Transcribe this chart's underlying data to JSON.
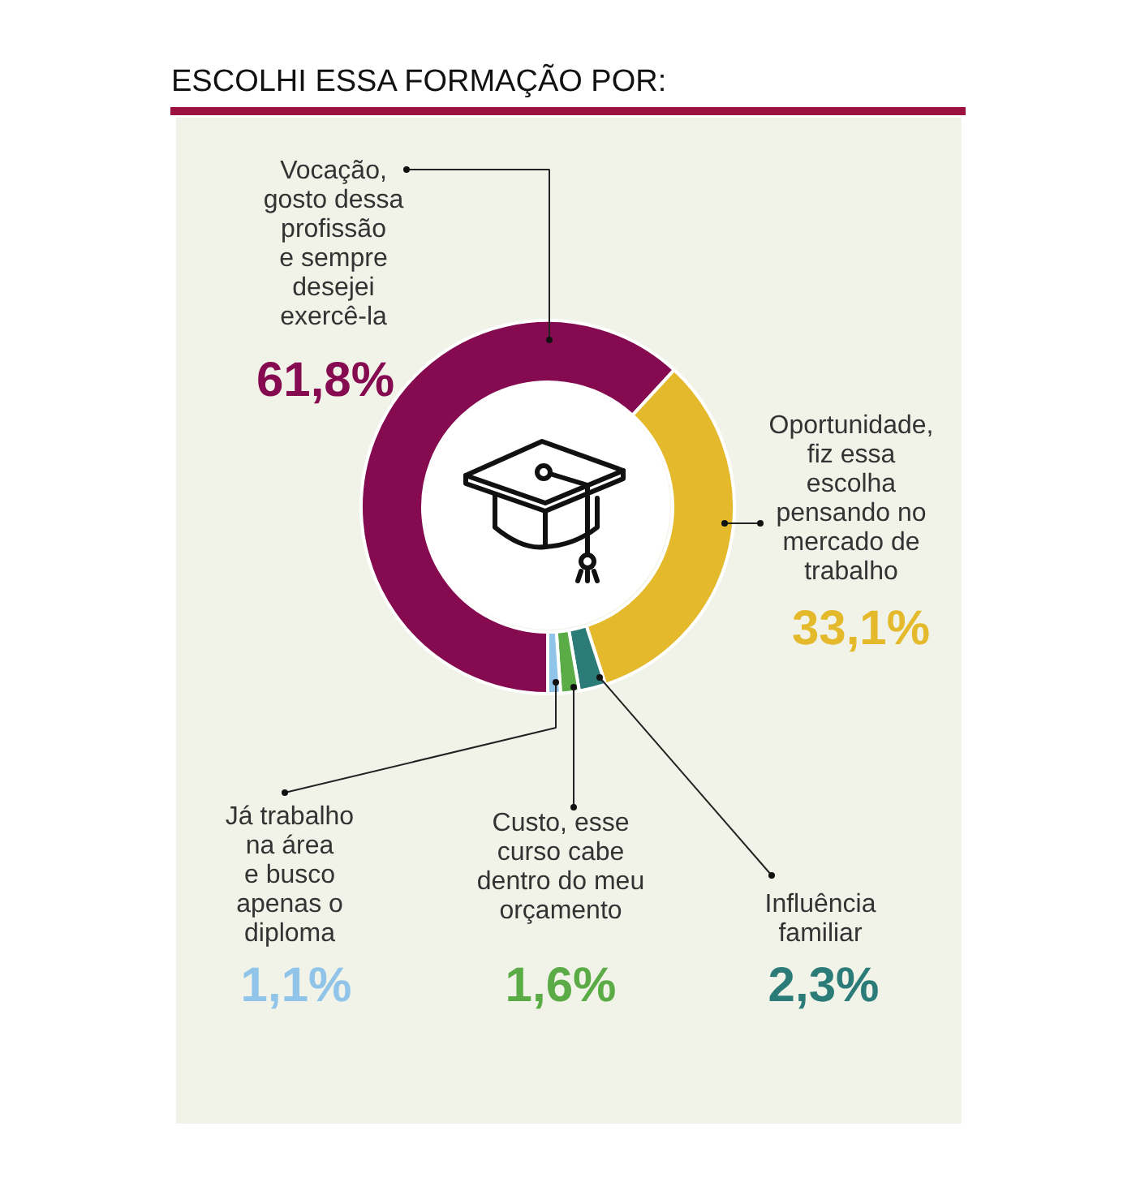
{
  "chart_data": {
    "type": "donut",
    "title": "ESCOLHI ESSA FORMAÇÃO POR:",
    "categories": [
      "Vocação,\ngosto dessa\nprofissão\ne sempre\ndesejei\nexercê-la",
      "Oportunidade,\nfiz essa\nescolha\npensando no\nmercado de\ntrabalho",
      "Influência\nfamiliar",
      "Custo, esse\ncurso cabe\ndentro do meu\norçamento",
      "Já trabalho\nna área\ne busco\napenas o\ndiploma"
    ],
    "values": [
      61.8,
      33.1,
      2.3,
      1.6,
      1.1
    ],
    "colors": [
      "#850a50",
      "#e4b92b",
      "#2b7b78",
      "#5bab46",
      "#90c4e8"
    ],
    "value_labels": [
      "61,8%",
      "33,1%",
      "2,3%",
      "1,6%",
      "1,1%"
    ]
  }
}
